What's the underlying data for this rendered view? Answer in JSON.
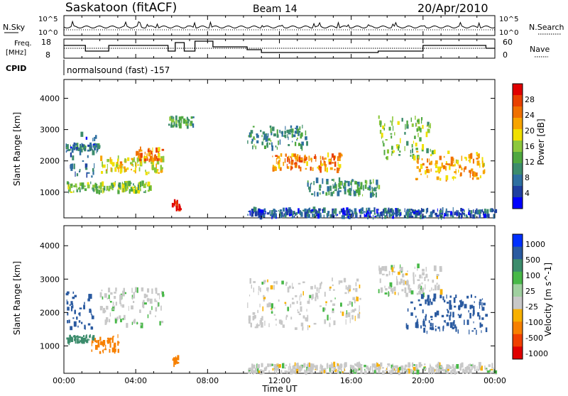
{
  "header": {
    "station": "Saskatoon (fitACF)",
    "beam": "Beam 14",
    "date": "20/Apr/2010"
  },
  "params": {
    "nsky_label": "N.Sky",
    "nsearch_label": "N.Search",
    "noise_ticks": [
      "10^5",
      "10^0"
    ],
    "freq_label_1": "Freq.",
    "freq_label_2": "[MHz]",
    "freq_ticks": [
      "18",
      "8"
    ],
    "nave_label": "Nave",
    "nave_ticks": [
      "60",
      "0"
    ],
    "cpid_label": "CPID",
    "cpid_text": "normalsound (fast) -157"
  },
  "colors": {
    "power": [
      "#0000ff",
      "#1f3fa0",
      "#2e6fa0",
      "#3c8c6c",
      "#4fa840",
      "#8cc83c",
      "#f0e000",
      "#f7a400",
      "#f07000",
      "#e84000",
      "#e00000"
    ],
    "velocity": [
      "#e00000",
      "#f04000",
      "#f78000",
      "#f7b000",
      "#c8c8c8",
      "#a0d0a0",
      "#48b848",
      "#3c8c6c",
      "#2a5aa0",
      "#0030ff"
    ]
  },
  "chart_data": [
    {
      "type": "heatmap",
      "panel": "power",
      "xlabel": "Time UT",
      "ylabel": "Slant Range [km]",
      "xlim": [
        0,
        24
      ],
      "ylim": [
        180,
        4600
      ],
      "x_ticks": [
        "00:00",
        "04:00",
        "08:00",
        "12:00",
        "16:00",
        "20:00",
        "00:00"
      ],
      "y_ticks": [
        1000,
        2000,
        3000,
        4000
      ],
      "colorbar": {
        "label": "Power [dB]",
        "ticks": [
          4,
          8,
          12,
          16,
          20,
          24,
          28
        ]
      },
      "features": [
        {
          "t": [
            0.1,
            2.0
          ],
          "r": [
            2300,
            2500
          ],
          "value": 8
        },
        {
          "t": [
            0.1,
            4.8
          ],
          "r": [
            1000,
            1300
          ],
          "value": 14
        },
        {
          "t": [
            0.3,
            1.8
          ],
          "r": [
            1500,
            2900
          ],
          "value": 6
        },
        {
          "t": [
            2.0,
            5.5
          ],
          "r": [
            1600,
            2100
          ],
          "value": 18
        },
        {
          "t": [
            4.0,
            5.5
          ],
          "r": [
            2000,
            2400
          ],
          "value": 22
        },
        {
          "t": [
            6.0,
            6.5
          ],
          "r": [
            400,
            700
          ],
          "value": 28
        },
        {
          "t": [
            5.8,
            7.2
          ],
          "r": [
            3100,
            3400
          ],
          "value": 12
        },
        {
          "t": [
            10.2,
            13.5
          ],
          "r": [
            2400,
            3100
          ],
          "value": 10
        },
        {
          "t": [
            11.5,
            15.5
          ],
          "r": [
            1700,
            2200
          ],
          "value": 22
        },
        {
          "t": [
            13.5,
            17.5
          ],
          "r": [
            900,
            1400
          ],
          "value": 10
        },
        {
          "t": [
            10.2,
            24.0
          ],
          "r": [
            200,
            450
          ],
          "value": 6
        },
        {
          "t": [
            17.5,
            20.5
          ],
          "r": [
            2000,
            3400
          ],
          "value": 14
        },
        {
          "t": [
            19.5,
            23.5
          ],
          "r": [
            1400,
            2300
          ],
          "value": 20
        }
      ]
    },
    {
      "type": "heatmap",
      "panel": "velocity",
      "xlabel": "Time UT",
      "ylabel": "Slant Range [km]",
      "xlim": [
        0,
        24
      ],
      "ylim": [
        180,
        4600
      ],
      "x_ticks": [
        "00:00",
        "04:00",
        "08:00",
        "12:00",
        "16:00",
        "20:00",
        "00:00"
      ],
      "y_ticks": [
        1000,
        2000,
        3000,
        4000
      ],
      "colorbar": {
        "label": "Velocity [m s^-1]",
        "ticks": [
          "1000",
          "500",
          "100",
          "25",
          "-25",
          "-100",
          "-500",
          "-1000"
        ]
      },
      "features": [
        {
          "t": [
            0.1,
            1.6
          ],
          "r": [
            1100,
            1300
          ],
          "value": 200
        },
        {
          "t": [
            0.1,
            1.6
          ],
          "r": [
            1500,
            2600
          ],
          "value": 600
        },
        {
          "t": [
            1.5,
            3.0
          ],
          "r": [
            800,
            1300
          ],
          "value": -300
        },
        {
          "t": [
            2.0,
            5.5
          ],
          "r": [
            1600,
            2700
          ],
          "value": 10
        },
        {
          "t": [
            6.0,
            6.5
          ],
          "r": [
            400,
            700
          ],
          "value": -200
        },
        {
          "t": [
            10.2,
            16.5
          ],
          "r": [
            1500,
            3000
          ],
          "value": 0
        },
        {
          "t": [
            17.5,
            21.0
          ],
          "r": [
            2500,
            3400
          ],
          "value": 0
        },
        {
          "t": [
            19.0,
            23.5
          ],
          "r": [
            1400,
            2500
          ],
          "value": 700
        },
        {
          "t": [
            10.2,
            24.0
          ],
          "r": [
            200,
            450
          ],
          "value": 0
        }
      ]
    }
  ]
}
